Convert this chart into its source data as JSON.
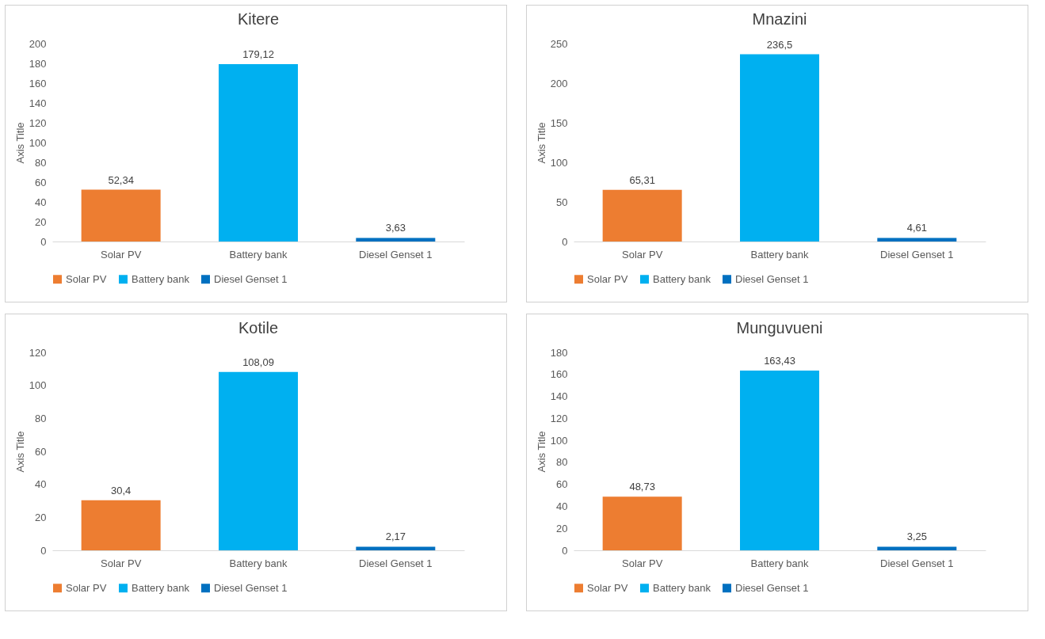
{
  "chart_data": [
    {
      "type": "bar",
      "title": "Kitere",
      "ylabel": "Axis Title",
      "categories": [
        "Solar PV",
        "Battery bank",
        "Diesel Genset 1"
      ],
      "series": [
        {
          "name": "Solar PV",
          "color": "#ed7d31",
          "values": [
            52.34,
            null,
            null
          ],
          "value_labels": [
            "52,34",
            null,
            null
          ]
        },
        {
          "name": "Battery bank",
          "color": "#00b0f0",
          "values": [
            null,
            179.12,
            null
          ],
          "value_labels": [
            null,
            "179,12",
            null
          ]
        },
        {
          "name": "Diesel Genset 1",
          "color": "#0070c0",
          "values": [
            null,
            null,
            3.63
          ],
          "value_labels": [
            null,
            null,
            "3,63"
          ]
        }
      ],
      "ylim": [
        0,
        200
      ],
      "yticks": [
        0,
        20,
        40,
        60,
        80,
        100,
        120,
        140,
        160,
        180,
        200
      ],
      "grid": false,
      "legend": "bottom"
    },
    {
      "type": "bar",
      "title": "Mnazini",
      "ylabel": "Axis Title",
      "categories": [
        "Solar PV",
        "Battery bank",
        "Diesel Genset 1"
      ],
      "series": [
        {
          "name": "Solar PV",
          "color": "#ed7d31",
          "values": [
            65.31,
            null,
            null
          ],
          "value_labels": [
            "65,31",
            null,
            null
          ]
        },
        {
          "name": "Battery bank",
          "color": "#00b0f0",
          "values": [
            null,
            236.5,
            null
          ],
          "value_labels": [
            null,
            "236,5",
            null
          ]
        },
        {
          "name": "Diesel Genset 1",
          "color": "#0070c0",
          "values": [
            null,
            null,
            4.61
          ],
          "value_labels": [
            null,
            null,
            "4,61"
          ]
        }
      ],
      "ylim": [
        0,
        250
      ],
      "yticks": [
        0,
        50,
        100,
        150,
        200,
        250
      ],
      "grid": false,
      "legend": "bottom"
    },
    {
      "type": "bar",
      "title": "Kotile",
      "ylabel": "Axis Title",
      "categories": [
        "Solar PV",
        "Battery bank",
        "Diesel Genset 1"
      ],
      "series": [
        {
          "name": "Solar PV",
          "color": "#ed7d31",
          "values": [
            30.4,
            null,
            null
          ],
          "value_labels": [
            "30,4",
            null,
            null
          ]
        },
        {
          "name": "Battery bank",
          "color": "#00b0f0",
          "values": [
            null,
            108.09,
            null
          ],
          "value_labels": [
            null,
            "108,09",
            null
          ]
        },
        {
          "name": "Diesel Genset 1",
          "color": "#0070c0",
          "values": [
            null,
            null,
            2.17
          ],
          "value_labels": [
            null,
            null,
            "2,17"
          ]
        }
      ],
      "ylim": [
        0,
        120
      ],
      "yticks": [
        0,
        20,
        40,
        60,
        80,
        100,
        120
      ],
      "grid": false,
      "legend": "bottom"
    },
    {
      "type": "bar",
      "title": "Munguvueni",
      "ylabel": "Axis Title",
      "categories": [
        "Solar PV",
        "Battery bank",
        "Diesel Genset 1"
      ],
      "series": [
        {
          "name": "Solar PV",
          "color": "#ed7d31",
          "values": [
            48.73,
            null,
            null
          ],
          "value_labels": [
            "48,73",
            null,
            null
          ]
        },
        {
          "name": "Battery bank",
          "color": "#00b0f0",
          "values": [
            null,
            163.43,
            null
          ],
          "value_labels": [
            null,
            "163,43",
            null
          ]
        },
        {
          "name": "Diesel Genset 1",
          "color": "#0070c0",
          "values": [
            null,
            null,
            3.25
          ],
          "value_labels": [
            null,
            null,
            "3,25"
          ]
        }
      ],
      "ylim": [
        0,
        180
      ],
      "yticks": [
        0,
        20,
        40,
        60,
        80,
        100,
        120,
        140,
        160,
        180
      ],
      "grid": false,
      "legend": "bottom"
    }
  ]
}
